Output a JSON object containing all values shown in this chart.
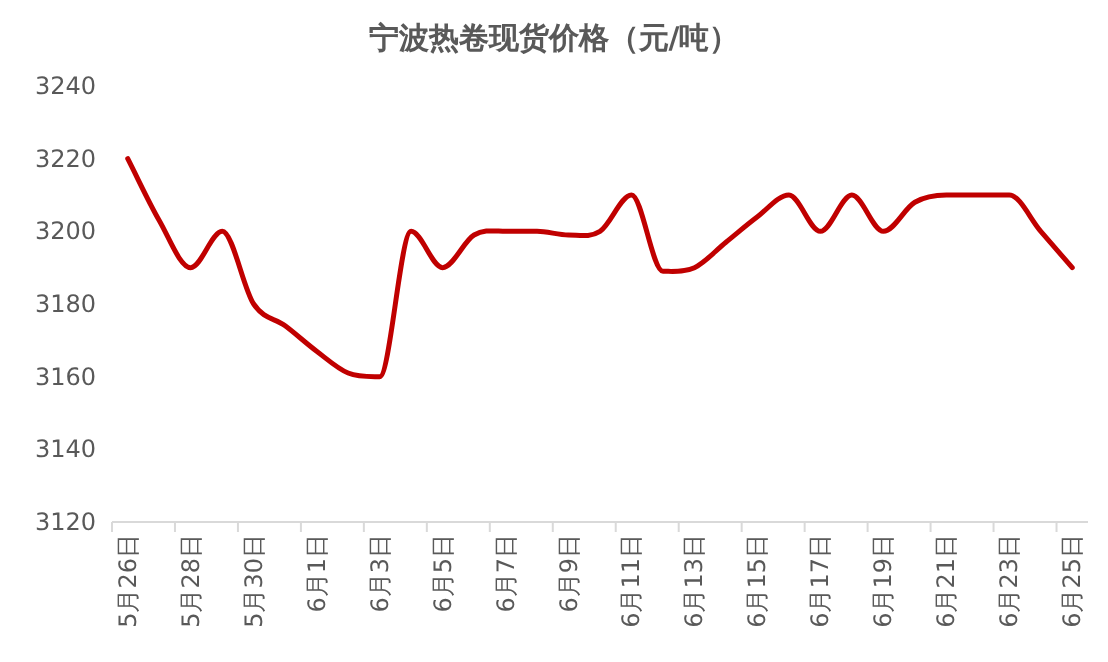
{
  "chart_data": {
    "type": "line",
    "title": "宁波热卷现货价格（元/吨）",
    "categories": [
      "5月26日",
      null,
      "5月28日",
      null,
      "5月30日",
      null,
      "6月1日",
      null,
      "6月3日",
      null,
      "6月5日",
      null,
      "6月7日",
      null,
      "6月9日",
      null,
      "6月11日",
      null,
      "6月13日",
      null,
      "6月15日",
      null,
      "6月17日",
      null,
      "6月19日",
      null,
      "6月21日",
      null,
      "6月23日",
      null,
      "6月25日"
    ],
    "series": [
      {
        "color": "#c00000",
        "values": [
          3220,
          3203,
          3190,
          3200,
          3180,
          3174,
          3167,
          3161,
          3160,
          3200,
          3190,
          3199,
          3200,
          3200,
          3199,
          3200,
          3210,
          3189,
          3190,
          3197,
          3204,
          3210,
          3200,
          3210,
          3200,
          3208,
          3210,
          3210,
          3210,
          3200,
          3190
        ]
      }
    ],
    "ylim": [
      3120,
      3240
    ],
    "yticks": [
      3120,
      3140,
      3160,
      3180,
      3200,
      3220,
      3240
    ],
    "grid": false,
    "marker": "none",
    "line_style": "solid"
  }
}
